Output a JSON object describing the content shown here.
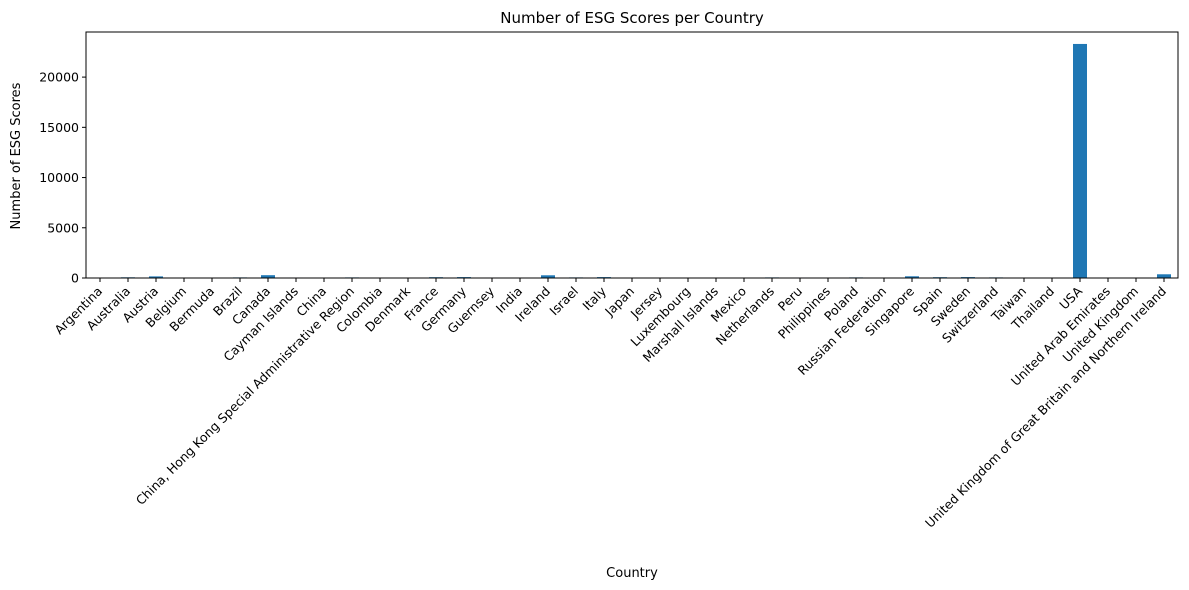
{
  "chart_data": {
    "type": "bar",
    "title": "Number of ESG Scores per Country",
    "xlabel": "Country",
    "ylabel": "Number of ESG Scores",
    "ylim": [
      0,
      24490
    ],
    "yticks": [
      0,
      5000,
      10000,
      15000,
      20000
    ],
    "grid": false,
    "legend": "none",
    "bar_color": "#1f77b4",
    "categories": [
      "Argentina",
      "Australia",
      "Austria",
      "Belgium",
      "Bermuda",
      "Brazil",
      "Canada",
      "Cayman Islands",
      "China",
      "China, Hong Kong Special Administrative Region",
      "Colombia",
      "Denmark",
      "France",
      "Germany",
      "Guernsey",
      "India",
      "Ireland",
      "Israel",
      "Italy",
      "Japan",
      "Jersey",
      "Luxembourg",
      "Marshall Islands",
      "Mexico",
      "Netherlands",
      "Peru",
      "Philippines",
      "Poland",
      "Russian Federation",
      "Singapore",
      "Spain",
      "Sweden",
      "Switzerland",
      "Taiwan",
      "Thailand",
      "USA",
      "United Arab Emirates",
      "United Kingdom",
      "United Kingdom of Great Britain and Northern Ireland"
    ],
    "values": [
      10,
      70,
      160,
      25,
      30,
      60,
      280,
      50,
      20,
      60,
      10,
      25,
      80,
      90,
      50,
      10,
      270,
      60,
      90,
      10,
      20,
      25,
      10,
      25,
      60,
      50,
      20,
      60,
      15,
      170,
      80,
      90,
      60,
      10,
      20,
      23300,
      15,
      25,
      370
    ]
  }
}
